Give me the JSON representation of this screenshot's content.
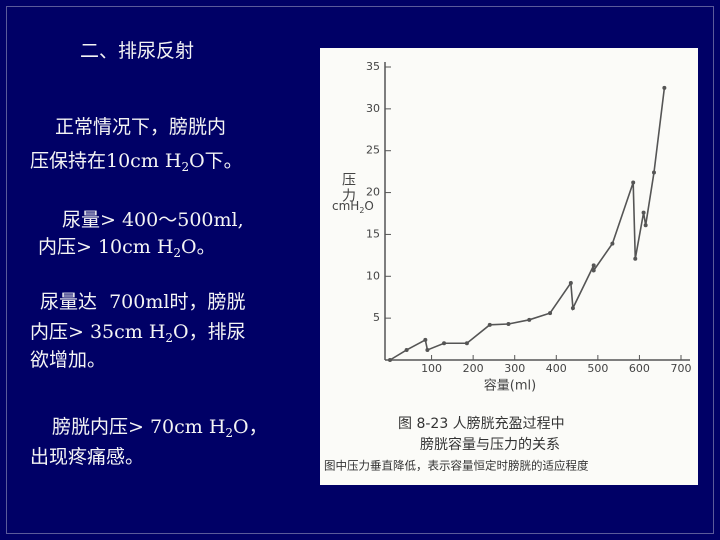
{
  "title": "二、排尿反射",
  "lines": [
    [
      "正常情况下，膀胱内"
    ],
    [
      "压保持在10cm H",
      "2",
      "O下。"
    ],
    [
      "尿量> 400～500ml,"
    ],
    [
      "内压> 10cm H",
      "2",
      "O。"
    ],
    [
      "尿量达  700ml时，膀胱"
    ],
    [
      "内压> 35cm H",
      "2",
      "O，排尿"
    ],
    [
      "欲增加。"
    ],
    [
      "膀胱内压> 70cm H",
      "2",
      "O，"
    ],
    [
      "出现疼痛感。"
    ]
  ],
  "chart_data": {
    "type": "line",
    "y_label": "压力",
    "y_unit": [
      "cmH",
      "2",
      "O"
    ],
    "x_label": "容量(ml)",
    "caption": [
      "图 8-23  人膀胱充盈过程中",
      "膀胱容量与压力的关系",
      "图中压力垂直降低，表示容量恒定时膀胱的适应程度"
    ],
    "x": [
      0,
      40,
      85,
      90,
      130,
      185,
      240,
      285,
      335,
      385,
      435,
      440,
      490,
      490,
      535,
      585,
      590,
      610,
      615,
      635,
      660
    ],
    "series": [
      {
        "color": "#555555",
        "values": [
          0,
          1.2,
          2.4,
          1.2,
          2,
          2,
          4.2,
          4.3,
          4.8,
          5.6,
          9.2,
          6.2,
          11.3,
          10.7,
          13.9,
          21.2,
          12.1,
          17.6,
          16.1,
          22.4,
          32.5
        ]
      }
    ],
    "xlim": [
      0,
      700
    ],
    "xticks": [
      100,
      200,
      300,
      400,
      500,
      600,
      700
    ],
    "ylim": [
      0,
      35
    ],
    "yticks": [
      5,
      10,
      15,
      20,
      25,
      30,
      35
    ]
  }
}
